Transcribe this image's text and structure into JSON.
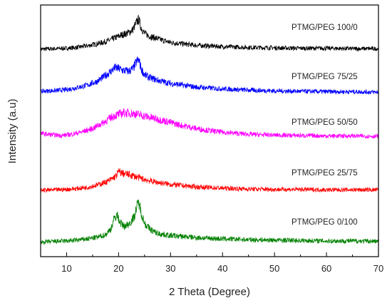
{
  "chart_data": {
    "type": "line",
    "xlabel": "2 Theta (Degree)",
    "ylabel": "Intensity (a.u)",
    "xlim": [
      5,
      70
    ],
    "xticks": [
      10,
      20,
      30,
      40,
      50,
      60,
      70
    ],
    "y_ticks_shown": false,
    "grid": false,
    "legend": "none",
    "series": [
      {
        "name": "PTMG/PEG 100/0",
        "color": "#000000",
        "label": "PTMG/PEG 100/0",
        "offset": 4,
        "x": [
          5,
          8,
          10,
          12,
          14,
          16,
          18,
          20,
          21,
          22,
          22.8,
          23.5,
          23.9,
          24.3,
          25,
          26,
          28,
          30,
          35,
          40,
          45,
          50,
          55,
          60,
          65,
          70
        ],
        "y": [
          0.02,
          0.03,
          0.04,
          0.06,
          0.1,
          0.15,
          0.22,
          0.33,
          0.38,
          0.42,
          0.5,
          0.68,
          0.74,
          0.55,
          0.4,
          0.33,
          0.25,
          0.18,
          0.11,
          0.08,
          0.06,
          0.05,
          0.04,
          0.04,
          0.03,
          0.03
        ]
      },
      {
        "name": "PTMG/PEG 75/25",
        "color": "#0000ff",
        "label": "PTMG/PEG  75/25",
        "offset": 3,
        "x": [
          5,
          8,
          10,
          12,
          14,
          16,
          18,
          19.3,
          20,
          21,
          22,
          22.8,
          23.5,
          23.9,
          24.4,
          25,
          26,
          28,
          30,
          35,
          40,
          45,
          50,
          55,
          60,
          65,
          70
        ],
        "y": [
          0.05,
          0.07,
          0.09,
          0.14,
          0.2,
          0.3,
          0.48,
          0.62,
          0.6,
          0.55,
          0.54,
          0.6,
          0.78,
          0.8,
          0.58,
          0.45,
          0.38,
          0.3,
          0.24,
          0.15,
          0.11,
          0.08,
          0.06,
          0.05,
          0.04,
          0.04,
          0.03
        ]
      },
      {
        "name": "PTMG/PEG 50/50",
        "color": "#ff00ff",
        "label": "PTMG/PEG  50/50",
        "offset": 2,
        "x": [
          5,
          7,
          9,
          11,
          13,
          15,
          17,
          19,
          21,
          23,
          25,
          27,
          29,
          31,
          33,
          35,
          38,
          40,
          45,
          50,
          55,
          60,
          65,
          70
        ],
        "y": [
          0.1,
          0.07,
          0.05,
          0.08,
          0.14,
          0.22,
          0.36,
          0.52,
          0.6,
          0.58,
          0.52,
          0.46,
          0.4,
          0.33,
          0.27,
          0.22,
          0.16,
          0.13,
          0.08,
          0.06,
          0.05,
          0.04,
          0.04,
          0.03
        ]
      },
      {
        "name": "PTMG/PEG 25/75",
        "color": "#ff0000",
        "label": "PTMG/PEG  25/75",
        "offset": 1,
        "x": [
          5,
          8,
          10,
          12,
          14,
          16,
          18,
          19.5,
          20,
          21,
          22,
          23,
          24,
          25,
          27,
          30,
          35,
          40,
          45,
          50,
          55,
          60,
          65,
          70
        ],
        "y": [
          0.02,
          0.03,
          0.04,
          0.06,
          0.09,
          0.15,
          0.24,
          0.36,
          0.47,
          0.42,
          0.4,
          0.36,
          0.32,
          0.28,
          0.22,
          0.16,
          0.1,
          0.07,
          0.05,
          0.04,
          0.04,
          0.03,
          0.03,
          0.03
        ]
      },
      {
        "name": "PTMG/PEG 0/100",
        "color": "#008000",
        "label": "PTMG/PEG 0/100",
        "offset": 0,
        "x": [
          5,
          8,
          10,
          12,
          14,
          16,
          17.5,
          18.5,
          19.2,
          19.7,
          20.3,
          21,
          22,
          23,
          23.5,
          23.9,
          24.3,
          25,
          26,
          27,
          28,
          30,
          35,
          40,
          45,
          50,
          55,
          60,
          65,
          70
        ],
        "y": [
          0.04,
          0.06,
          0.07,
          0.09,
          0.12,
          0.16,
          0.22,
          0.36,
          0.62,
          0.7,
          0.52,
          0.42,
          0.48,
          0.65,
          0.9,
          1.0,
          0.78,
          0.5,
          0.36,
          0.28,
          0.24,
          0.2,
          0.15,
          0.12,
          0.1,
          0.09,
          0.08,
          0.07,
          0.07,
          0.06
        ]
      }
    ]
  }
}
